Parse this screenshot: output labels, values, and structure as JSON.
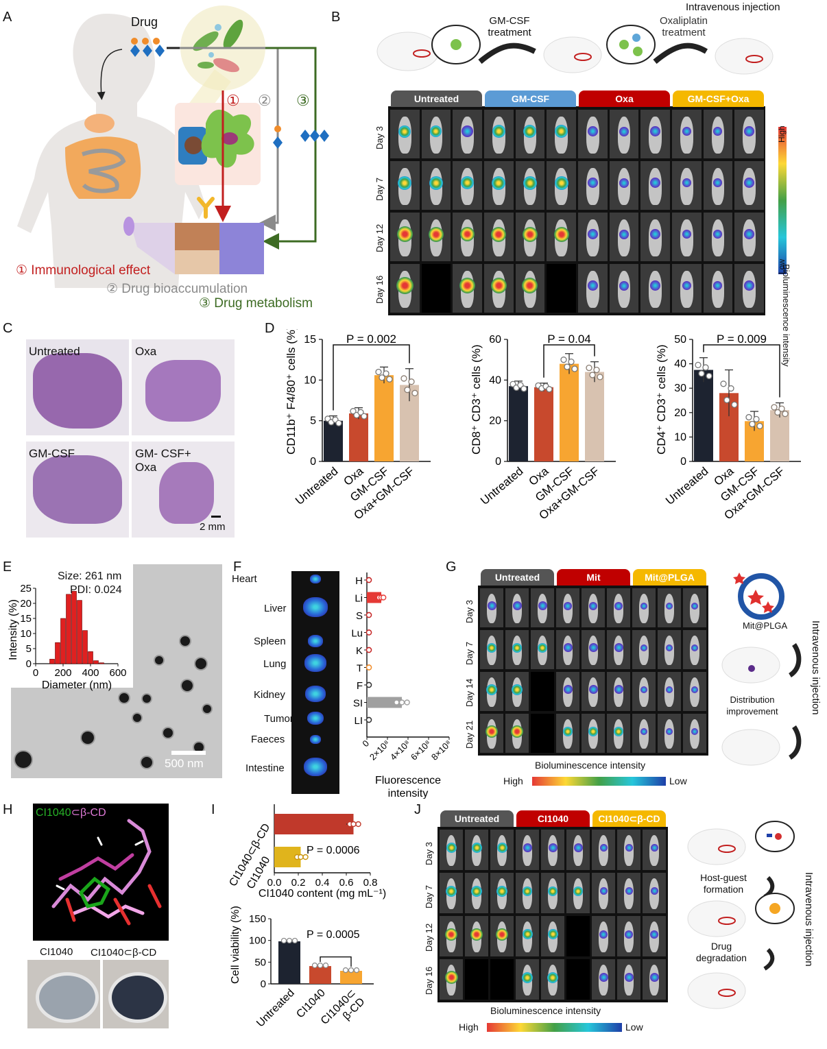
{
  "panels": {
    "A": {
      "letter": "A",
      "drug": "Drug",
      "n1": "①",
      "n2": "②",
      "n3": "③",
      "legend1": "① Immunological effect",
      "legend2": "② Drug bioaccumulation",
      "legend3": "③ Drug metabolism"
    },
    "B": {
      "letter": "B",
      "gmcsf_step": "GM-CSF treatment",
      "oxa_step": "Oxaliplatin treatment",
      "iv": "Intravenous injection",
      "groups": [
        "Untreated",
        "GM-CSF",
        "Oxa",
        "GM-CSF+Oxa"
      ],
      "group_colors": [
        "#555555",
        "#5b9bd5",
        "#c00000",
        "#f5b800"
      ],
      "days": [
        "Day 3",
        "Day 7",
        "Day 12",
        "Day 16"
      ],
      "bar_high": "High",
      "bar_low": "Low",
      "bar_title": "Bioluminescence intensity"
    },
    "C": {
      "letter": "C",
      "labels": [
        "Untreated",
        "Oxa",
        "GM-CSF",
        "GM- CSF+\nOxa"
      ],
      "scale": "2 mm"
    },
    "D": {
      "letter": "D",
      "charts": [
        {
          "ylabel": "CD11b⁺ F4/80⁺ cells (%)",
          "ylim": [
            0,
            15
          ],
          "ticks": [
            0,
            5,
            10,
            15
          ],
          "p": "P = 0.002"
        },
        {
          "ylabel": "CD8⁺ CD3⁺ cells (%)",
          "ylim": [
            0,
            60
          ],
          "ticks": [
            0,
            20,
            40,
            60
          ],
          "p": "P = 0.04"
        },
        {
          "ylabel": "CD4⁺ CD3⁺ cells (%)",
          "ylim": [
            0,
            50
          ],
          "ticks": [
            0,
            10,
            20,
            30,
            40,
            50
          ],
          "p": "P = 0.009"
        }
      ]
    },
    "E": {
      "letter": "E",
      "size": "Size: 261 nm",
      "pdi": "PDI: 0.024",
      "ylabel": "Intensity (%)",
      "xlabel": "Diameter (nm)",
      "scale": "500 nm",
      "yticks": [
        0,
        5,
        10,
        15,
        20,
        25
      ],
      "xticks": [
        0,
        200,
        400,
        600
      ]
    },
    "F": {
      "letter": "F",
      "organs": [
        "Heart",
        "Liver",
        "Spleen",
        "Lung",
        "Kidney",
        "Tumor",
        "Faeces",
        "Intestine"
      ],
      "abbr": [
        "H",
        "Li",
        "S",
        "Lu",
        "K",
        "T",
        "F",
        "SI",
        "LI"
      ],
      "xlabel": "Fluorescence intensity",
      "xticks": [
        "0",
        "2×10⁸",
        "4×10⁸",
        "6×10⁸",
        "8×10⁸"
      ]
    },
    "G": {
      "letter": "G",
      "groups": [
        "Untreated",
        "Mit",
        "Mit@PLGA"
      ],
      "group_colors": [
        "#555555",
        "#c00000",
        "#f5b800"
      ],
      "days": [
        "Day 3",
        "Day 7",
        "Day 14",
        "Day 21"
      ],
      "np": "Mit@PLGA",
      "dist": "Distribution improvement",
      "iv": "Intravenous injection",
      "bar_title": "Bioluminescence intensity",
      "high": "High",
      "low": "Low"
    },
    "H": {
      "letter": "H",
      "title_a": "CI1040",
      "title_b": "⊂β-CD",
      "photo_a": "CI1040",
      "photo_b": "CI1040⊂β-CD"
    },
    "I": {
      "letter": "I",
      "top_cats": [
        "CI1040⊂β-CD",
        "CI1040"
      ],
      "top_p": "P = 0.0006",
      "top_xlabel": "CI1040 content (mg mL⁻¹)",
      "top_xticks": [
        0.0,
        0.2,
        0.4,
        0.6,
        0.8
      ],
      "bot_ylabel": "Cell viability (%)",
      "bot_cats": [
        "Untreated",
        "CI1040",
        "CI1040⊂\nβ-CD"
      ],
      "bot_p": "P = 0.0005",
      "bot_yticks": [
        0,
        50,
        100,
        150
      ]
    },
    "J": {
      "letter": "J",
      "groups": [
        "Untreated",
        "CI1040",
        "CI1040⊂β-CD"
      ],
      "group_colors": [
        "#555555",
        "#c00000",
        "#f5b800"
      ],
      "days": [
        "Day 3",
        "Day 7",
        "Day 12",
        "Day 16"
      ],
      "host": "Host-guest formation",
      "degr": "Drug degradation",
      "iv": "Intravenous injection",
      "bar_title": "Bioluminescence intensity",
      "high": "High",
      "low": "Low"
    }
  },
  "chart_data": [
    {
      "type": "bar",
      "categories": [
        "Untreated",
        "Oxa",
        "GM-CSF",
        "Oxa+GM-CSF"
      ],
      "values": [
        5.0,
        5.9,
        10.6,
        9.4
      ],
      "errors": [
        0.6,
        0.7,
        1.0,
        2.0
      ],
      "colors": [
        "#1d2330",
        "#c8492d",
        "#f7a531",
        "#d8c2b0"
      ],
      "ylabel": "CD11b⁺ F4/80⁺ cells (%)",
      "ylim": [
        0,
        15
      ]
    },
    {
      "type": "bar",
      "categories": [
        "Untreated",
        "Oxa",
        "GM-CSF",
        "Oxa+GM-CSF"
      ],
      "values": [
        37,
        36.5,
        48,
        44
      ],
      "errors": [
        2.5,
        2.0,
        5.0,
        5.0
      ],
      "colors": [
        "#1d2330",
        "#c8492d",
        "#f7a531",
        "#d8c2b0"
      ],
      "ylabel": "CD8⁺ CD3⁺ cells (%)",
      "ylim": [
        0,
        60
      ]
    },
    {
      "type": "bar",
      "categories": [
        "Untreated",
        "Oxa",
        "GM-CSF",
        "Oxa+GM-CSF"
      ],
      "values": [
        37.5,
        28,
        16.5,
        21
      ],
      "errors": [
        5.0,
        9.5,
        4.0,
        3.0
      ],
      "colors": [
        "#1d2330",
        "#c8492d",
        "#f7a531",
        "#d8c2b0"
      ],
      "ylabel": "CD4⁺ CD3⁺ cells (%)",
      "ylim": [
        0,
        50
      ]
    },
    {
      "type": "bar",
      "x": [
        120,
        160,
        200,
        240,
        280,
        320,
        360,
        400,
        440,
        480
      ],
      "values": [
        1.5,
        7,
        15,
        23,
        24,
        21,
        11,
        4,
        1,
        0.3
      ],
      "ylabel": "Intensity (%)",
      "xlabel": "Diameter (nm)",
      "ylim": [
        0,
        25
      ],
      "xlim": [
        0,
        600
      ]
    },
    {
      "type": "bar",
      "categories": [
        "H",
        "Li",
        "S",
        "Lu",
        "K",
        "T",
        "F",
        "SI",
        "LI"
      ],
      "values": [
        0.02,
        1.4,
        0.05,
        0.1,
        0.1,
        0.05,
        0.01,
        3.4,
        0.05
      ],
      "colors": [
        "#c62828",
        "#e53935",
        "#c62828",
        "#c62828",
        "#c62828",
        "#f08c2a",
        "#333333",
        "#a0a0a0",
        "#333333"
      ],
      "xlabel": "Fluorescence intensity",
      "xlim": [
        0,
        8
      ]
    },
    {
      "type": "bar",
      "categories": [
        "CI1040⊂β-CD",
        "CI1040"
      ],
      "values": [
        0.66,
        0.22
      ],
      "errors": [
        0.06,
        0.02
      ],
      "colors": [
        "#c0392b",
        "#e0b41c"
      ],
      "xlabel": "CI1040 content (mg mL⁻¹)",
      "xlim": [
        0,
        0.8
      ]
    },
    {
      "type": "bar",
      "categories": [
        "Untreated",
        "CI1040",
        "CI1040⊂β-CD"
      ],
      "values": [
        98,
        41,
        30
      ],
      "errors": [
        3,
        2,
        4
      ],
      "colors": [
        "#1d2330",
        "#c8492d",
        "#f7a531"
      ],
      "ylabel": "Cell viability (%)",
      "ylim": [
        0,
        150
      ]
    }
  ]
}
